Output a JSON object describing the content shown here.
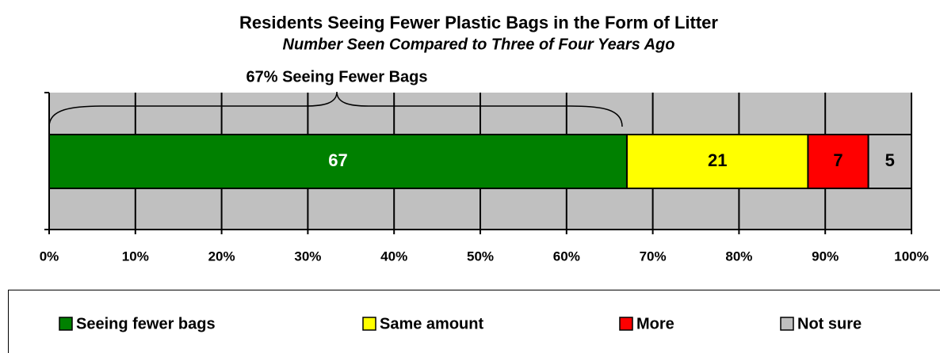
{
  "chart_data": {
    "type": "stacked-bar-horizontal",
    "title": "Residents Seeing Fewer Plastic Bags in the Form of Litter",
    "subtitle": "Number Seen Compared to Three of Four Years Ago",
    "annotation": "67% Seeing Fewer Bags",
    "categories": [
      null
    ],
    "series": [
      {
        "name": "Seeing fewer bags",
        "color": "#008000",
        "values": [
          67
        ]
      },
      {
        "name": "Same amount",
        "color": "#ffff00",
        "values": [
          21
        ]
      },
      {
        "name": "More",
        "color": "#ff0000",
        "values": [
          7
        ]
      },
      {
        "name": "Not sure",
        "color": "#c0c0c0",
        "values": [
          5
        ]
      }
    ],
    "xlim": [
      0,
      100
    ],
    "xticks": [
      {
        "value": 0,
        "label": "0%"
      },
      {
        "value": 10,
        "label": "10%"
      },
      {
        "value": 20,
        "label": "20%"
      },
      {
        "value": 30,
        "label": "30%"
      },
      {
        "value": 40,
        "label": "40%"
      },
      {
        "value": 50,
        "label": "50%"
      },
      {
        "value": 60,
        "label": "60%"
      },
      {
        "value": 70,
        "label": "70%"
      },
      {
        "value": 80,
        "label": "80%"
      },
      {
        "value": 90,
        "label": "90%"
      },
      {
        "value": 100,
        "label": "100%"
      }
    ],
    "grid": true,
    "legend": "bottom"
  }
}
